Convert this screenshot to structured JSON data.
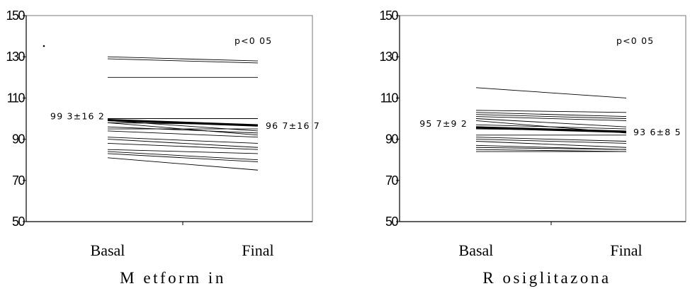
{
  "chart_data": [
    {
      "type": "line",
      "title": "M etform in",
      "categories": [
        "Basal",
        "Final"
      ],
      "ylim": [
        50,
        150
      ],
      "yticks": [
        50,
        70,
        90,
        110,
        130,
        150
      ],
      "ytick_labels": [
        "50",
        "70",
        "90",
        "110",
        "130",
        "150"
      ],
      "grid": false,
      "annotation": "p<0 05",
      "mean_label_left": "99 3±16 2",
      "mean_label_right": "96 7±16 7",
      "mean": [
        99.3,
        96.7
      ],
      "series": [
        {
          "values": [
            130,
            128
          ]
        },
        {
          "values": [
            129,
            127
          ]
        },
        {
          "values": [
            120,
            120
          ]
        },
        {
          "values": [
            100,
            100
          ]
        },
        {
          "values": [
            99,
            94
          ]
        },
        {
          "values": [
            98,
            97
          ]
        },
        {
          "values": [
            98,
            92
          ]
        },
        {
          "values": [
            96,
            93
          ]
        },
        {
          "values": [
            95,
            95
          ]
        },
        {
          "values": [
            94,
            91
          ]
        },
        {
          "values": [
            91,
            88
          ]
        },
        {
          "values": [
            90,
            86
          ]
        },
        {
          "values": [
            88,
            85
          ]
        },
        {
          "values": [
            85,
            83
          ]
        },
        {
          "values": [
            84,
            80
          ]
        },
        {
          "values": [
            83,
            79
          ]
        },
        {
          "values": [
            81,
            75
          ]
        }
      ]
    },
    {
      "type": "line",
      "title": "R osiglitazona",
      "categories": [
        "Basal",
        "Final"
      ],
      "ylim": [
        50,
        150
      ],
      "yticks": [
        50,
        70,
        90,
        110,
        130,
        150
      ],
      "ytick_labels": [
        "50",
        "70",
        "90",
        "110",
        "130",
        "150"
      ],
      "grid": false,
      "annotation": "p<0 05",
      "mean_label_left": "95 7±9 2",
      "mean_label_right": "93 6±8 5",
      "mean": [
        95.7,
        93.6
      ],
      "series": [
        {
          "values": [
            115,
            110
          ]
        },
        {
          "values": [
            104,
            103
          ]
        },
        {
          "values": [
            103,
            101
          ]
        },
        {
          "values": [
            102,
            100
          ]
        },
        {
          "values": [
            101,
            99
          ]
        },
        {
          "values": [
            100,
            96
          ]
        },
        {
          "values": [
            99,
            93
          ]
        },
        {
          "values": [
            97,
            95
          ]
        },
        {
          "values": [
            95,
            94
          ]
        },
        {
          "values": [
            92,
            92
          ]
        },
        {
          "values": [
            91,
            89
          ]
        },
        {
          "values": [
            90,
            88
          ]
        },
        {
          "values": [
            89,
            86
          ]
        },
        {
          "values": [
            87,
            85
          ]
        },
        {
          "values": [
            86,
            85
          ]
        },
        {
          "values": [
            85,
            84
          ]
        },
        {
          "values": [
            84,
            84
          ]
        }
      ]
    }
  ]
}
